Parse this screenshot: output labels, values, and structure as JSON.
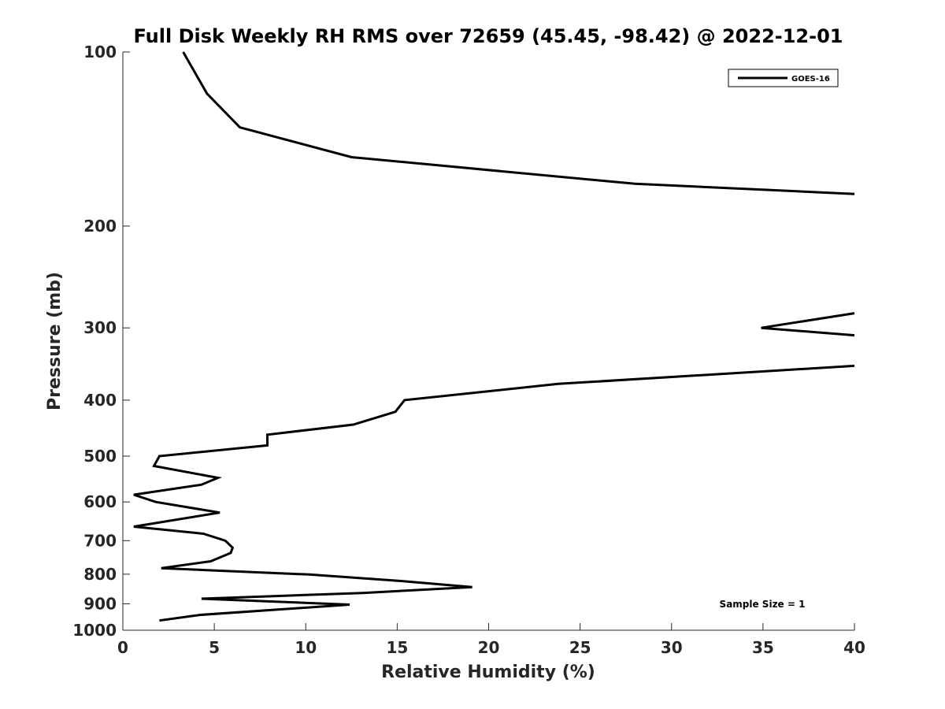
{
  "chart_data": {
    "type": "line",
    "title": "Full Disk Weekly RH RMS over 72659 (45.45, -98.42) @ 2022-12-01",
    "xlabel": "Relative Humidity (%)",
    "ylabel": "Pressure (mb)",
    "xlim": [
      0,
      40
    ],
    "ylim": [
      100,
      1000
    ],
    "y_scale": "log",
    "y_reversed": true,
    "grid": false,
    "legend_position": "top-right",
    "x_ticks": [
      0,
      5,
      10,
      15,
      20,
      25,
      30,
      35,
      40
    ],
    "y_ticks": [
      100,
      200,
      300,
      400,
      500,
      600,
      700,
      800,
      900,
      1000
    ],
    "series": [
      {
        "name": "GOES-16",
        "color": "#000000",
        "points": [
          [
            3.3,
            100
          ],
          [
            4.6,
            118
          ],
          [
            6.4,
            135
          ],
          [
            12.5,
            152
          ],
          [
            28.0,
            169
          ],
          [
            40.0,
            176
          ],
          null,
          [
            40.0,
            283
          ],
          [
            34.9,
            300
          ],
          [
            40.0,
            309
          ],
          null,
          [
            40.0,
            349
          ],
          [
            23.8,
            375
          ],
          [
            15.4,
            400
          ],
          [
            14.9,
            419
          ],
          [
            12.6,
            441
          ],
          [
            7.9,
            459
          ],
          [
            7.9,
            479
          ],
          [
            2.0,
            500
          ],
          [
            1.7,
            520
          ],
          [
            5.2,
            545
          ],
          [
            4.3,
            560
          ],
          [
            0.6,
            583
          ],
          [
            1.8,
            600
          ],
          [
            5.3,
            626
          ],
          [
            0.6,
            662
          ],
          [
            4.4,
            681
          ],
          [
            5.6,
            700
          ],
          [
            6.0,
            720
          ],
          [
            5.9,
            735
          ],
          [
            4.8,
            760
          ],
          [
            2.1,
            781
          ],
          [
            10.2,
            801
          ],
          [
            15.2,
            822
          ],
          [
            19.1,
            842
          ],
          [
            13.1,
            862
          ],
          [
            4.3,
            882
          ],
          [
            12.4,
            903
          ],
          [
            4.2,
            941
          ],
          [
            2.0,
            962
          ]
        ]
      }
    ],
    "annotations": [
      {
        "text": "Sample Size = 1"
      }
    ]
  }
}
